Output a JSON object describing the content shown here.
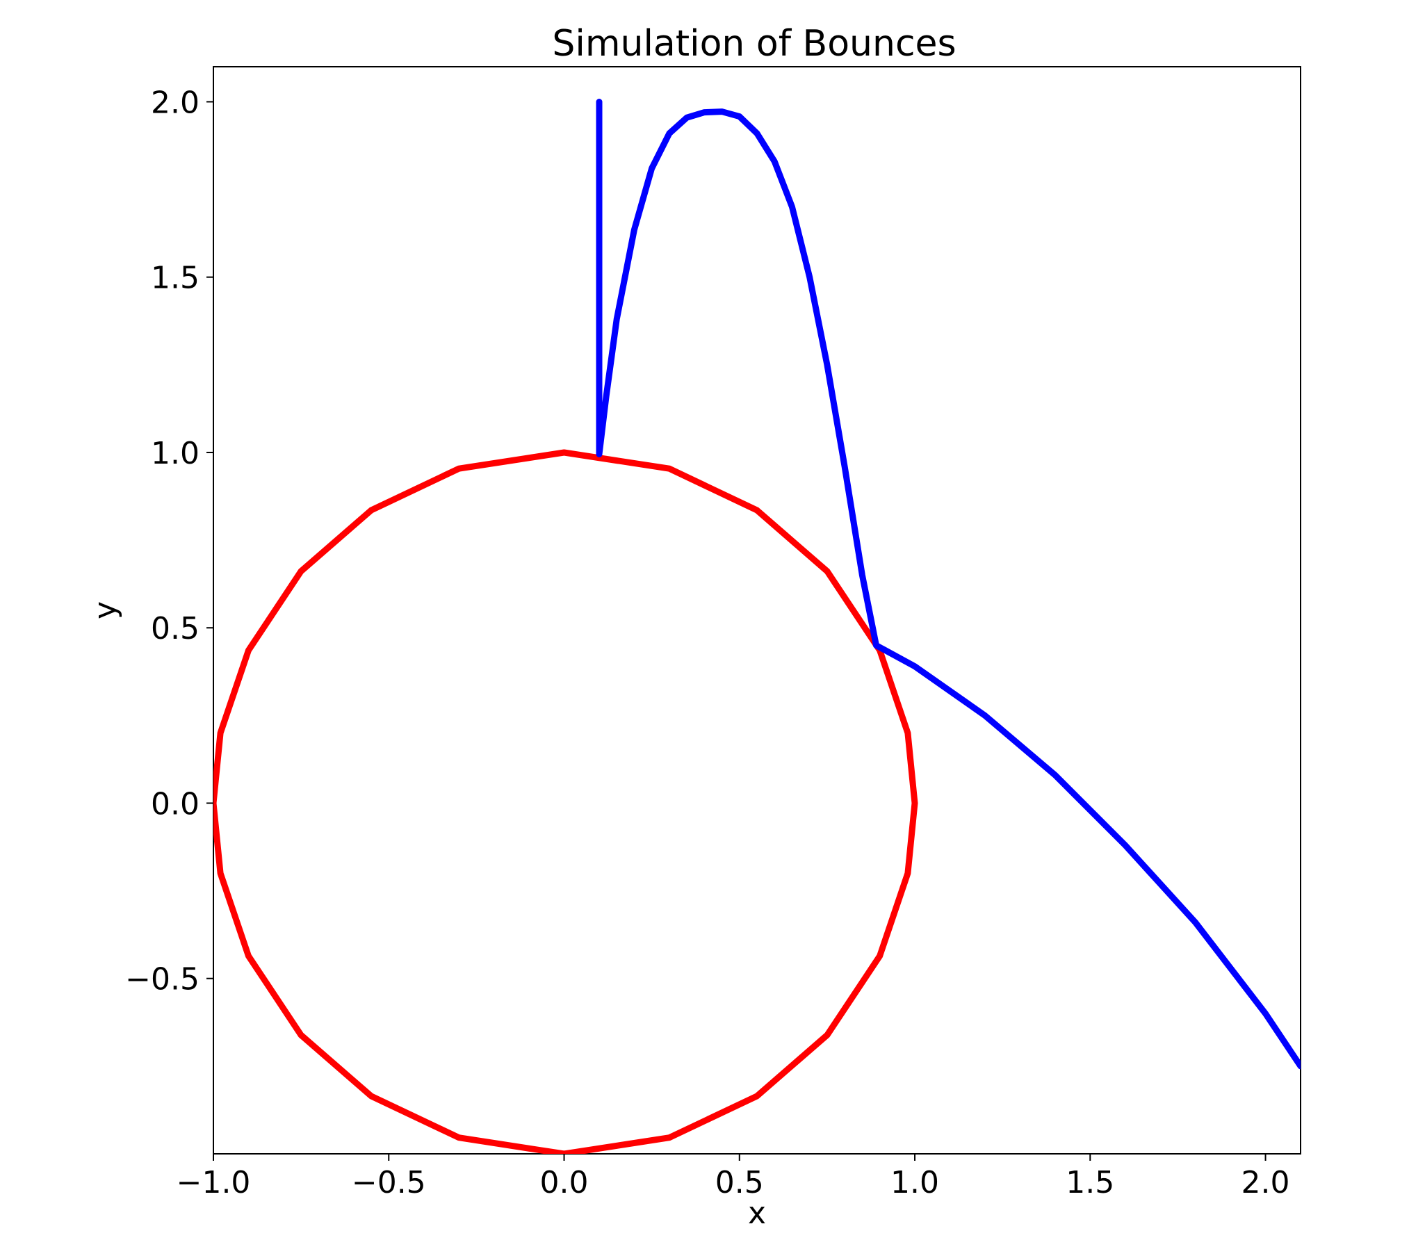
{
  "chart_data": {
    "type": "line",
    "title": "Simulation of Bounces",
    "xlabel": "x",
    "ylabel": "y",
    "xlim": [
      -1.0,
      2.1
    ],
    "ylim": [
      -1.0,
      2.1
    ],
    "grid": false,
    "x_ticks": [
      -1.0,
      -0.5,
      0.0,
      0.5,
      1.0,
      1.5,
      2.0
    ],
    "x_tick_labels": [
      "−1.0",
      "−0.5",
      "0.0",
      "0.5",
      "1.0",
      "1.5",
      "2.0"
    ],
    "y_ticks": [
      -0.5,
      0.0,
      0.5,
      1.0,
      1.5,
      2.0
    ],
    "y_tick_labels": [
      "−0.5",
      "0.0",
      "0.5",
      "1.0",
      "1.5",
      "2.0"
    ],
    "series": [
      {
        "color": "#ff0000",
        "x": [
          -1.0,
          -0.98,
          -0.9,
          -0.75,
          -0.55,
          -0.3,
          0.0,
          0.3,
          0.55,
          0.75,
          0.9,
          0.98,
          1.0,
          0.98,
          0.9,
          0.75,
          0.55,
          0.3,
          0.0,
          -0.3,
          -0.55,
          -0.75,
          -0.9,
          -0.98,
          -1.0
        ],
        "y": [
          0.0,
          0.2,
          0.4359,
          0.6614,
          0.8352,
          0.9539,
          1.0,
          0.9539,
          0.8352,
          0.6614,
          0.4359,
          0.2,
          0.0,
          -0.2,
          -0.4359,
          -0.6614,
          -0.8352,
          -0.9539,
          -1.0,
          -0.9539,
          -0.8352,
          -0.6614,
          -0.4359,
          -0.2,
          0.0
        ]
      },
      {
        "color": "#0000ff",
        "x": [
          0.1,
          0.1,
          0.12,
          0.15,
          0.2,
          0.25,
          0.3,
          0.35,
          0.4,
          0.45,
          0.5,
          0.55,
          0.6,
          0.65,
          0.7,
          0.75,
          0.8,
          0.85,
          0.89,
          0.89,
          1.0,
          1.2,
          1.4,
          1.6,
          1.8,
          2.0,
          2.1
        ],
        "y": [
          2.0,
          0.995,
          1.16,
          1.38,
          1.635,
          1.81,
          1.91,
          1.955,
          1.97,
          1.972,
          1.958,
          1.91,
          1.83,
          1.7,
          1.5,
          1.25,
          0.96,
          0.65,
          0.45,
          0.45,
          0.39,
          0.25,
          0.08,
          -0.12,
          -0.34,
          -0.6,
          -0.75
        ]
      }
    ]
  }
}
